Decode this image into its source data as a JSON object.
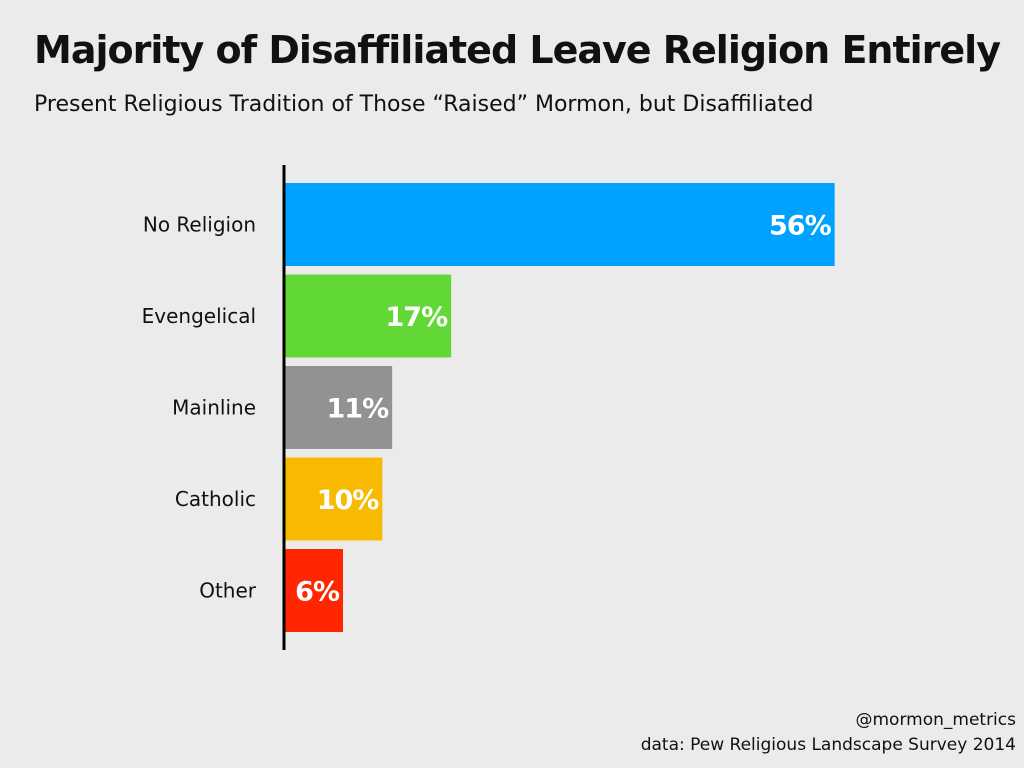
{
  "header": {
    "title": "Majority of Disaffiliated Leave Religion Entirely",
    "subtitle": "Present Religious Tradition of Those “Raised” Mormon, but Disaffiliated"
  },
  "footer": {
    "handle": "@mormon_metrics",
    "source": "data: Pew Religious Landscape Survey 2014"
  },
  "chart_data": {
    "type": "bar",
    "orientation": "horizontal",
    "title": "Majority of Disaffiliated Leave Religion Entirely",
    "subtitle": "Present Religious Tradition of Those “Raised” Mormon, but Disaffiliated",
    "xlabel": "",
    "ylabel": "",
    "categories": [
      "No Religion",
      "Evengelical",
      "Mainline",
      "Catholic",
      "Other"
    ],
    "values": [
      56,
      17,
      11,
      10,
      6
    ],
    "value_labels": [
      "56%",
      "17%",
      "11%",
      "10%",
      "6%"
    ],
    "colors": [
      "#00a2ff",
      "#61d836",
      "#929292",
      "#f8ba00",
      "#ff2600"
    ],
    "label_color": "#ffffff",
    "xlim": [
      0,
      60
    ],
    "grid": false,
    "legend": "none"
  }
}
